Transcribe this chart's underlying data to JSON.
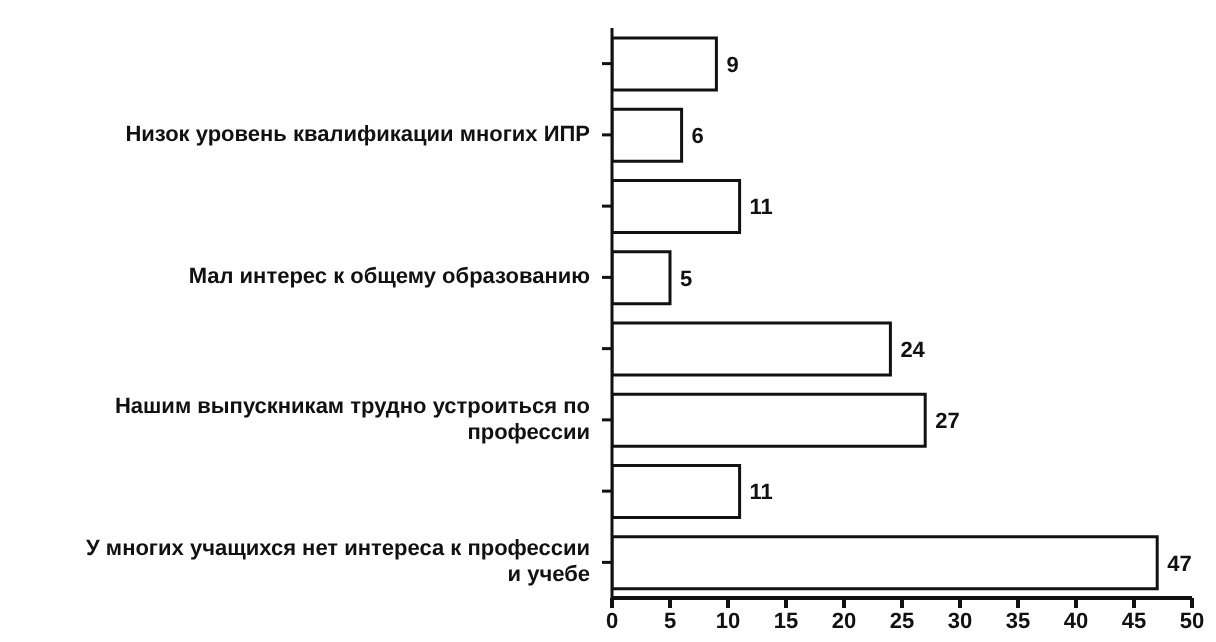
{
  "chart_data": {
    "type": "bar",
    "orientation": "horizontal",
    "categories": [
      null,
      "Низок уровень квалификации многих ИПР",
      null,
      "Мал интерес к общему образованию",
      null,
      "Нашим выпускникам трудно устроиться по профессии",
      null,
      "У многих учащихся нет интереса к профессии и учебе"
    ],
    "values": [
      9,
      6,
      11,
      5,
      24,
      27,
      11,
      47
    ],
    "color": "#ffffff",
    "data_labels": true,
    "xlim": [
      0,
      50
    ],
    "xticks": [
      0,
      5,
      10,
      15,
      20,
      25,
      30,
      35,
      40,
      45,
      50
    ],
    "grid": false,
    "legend": false
  }
}
